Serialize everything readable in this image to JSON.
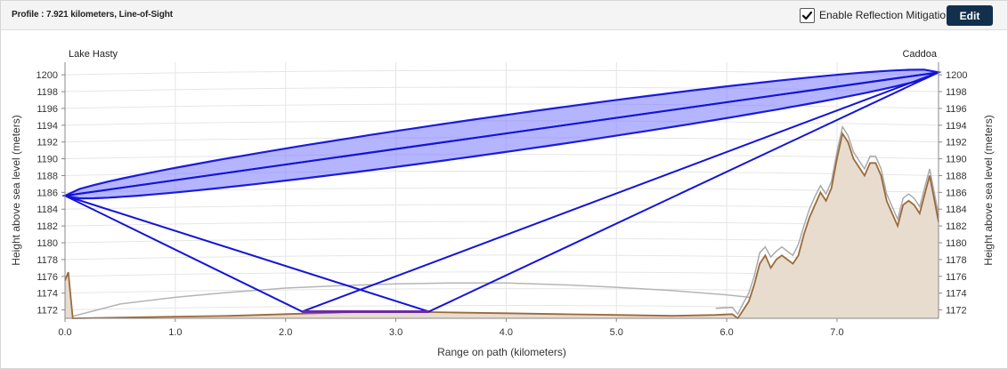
{
  "toolbar": {
    "title": "Profile : 7.921 kilometers, Line-of-Sight",
    "reflection_label": "Enable Reflection Mitigation",
    "reflection_checked": true,
    "edit_label": "Edit"
  },
  "chart_data": {
    "type": "area",
    "xlabel": "Range on path (kilometers)",
    "ylabel": "Height above sea level (meters)",
    "xlim": [
      0,
      7.921
    ],
    "ylim": [
      1171,
      1201.5
    ],
    "x_ticks": [
      "0.0",
      "1.0",
      "2.0",
      "3.0",
      "4.0",
      "5.0",
      "6.0",
      "7.0"
    ],
    "y_ticks": [
      "1172",
      "1174",
      "1176",
      "1178",
      "1180",
      "1182",
      "1184",
      "1186",
      "1188",
      "1190",
      "1192",
      "1194",
      "1196",
      "1198",
      "1200"
    ],
    "grid": true,
    "endpoints": {
      "start": {
        "name": "Lake Hasty",
        "x": 0,
        "height": 1185.6
      },
      "end": {
        "name": "Caddoa",
        "x": 7.921,
        "height": 1200.3
      }
    },
    "fresnel_zone": {
      "max_half_width": 2.2
    },
    "reflection_points": [
      2.15,
      3.3
    ],
    "reflection_height": 1171.8,
    "series": [
      {
        "name": "terrain",
        "color": "#9b6a3a",
        "points": [
          [
            0,
            1175.5
          ],
          [
            0.03,
            1176.5
          ],
          [
            0.07,
            1171
          ],
          [
            0.5,
            1171.1
          ],
          [
            1,
            1171.2
          ],
          [
            1.5,
            1171.3
          ],
          [
            2,
            1171.5
          ],
          [
            2.5,
            1171.7
          ],
          [
            3,
            1171.8
          ],
          [
            3.5,
            1171.7
          ],
          [
            4,
            1171.6
          ],
          [
            4.5,
            1171.5
          ],
          [
            5,
            1171.4
          ],
          [
            5.5,
            1171.3
          ],
          [
            5.9,
            1171.4
          ],
          [
            6.05,
            1171.5
          ],
          [
            6.1,
            1171
          ],
          [
            6.15,
            1172
          ],
          [
            6.2,
            1173
          ],
          [
            6.25,
            1175
          ],
          [
            6.3,
            1177.5
          ],
          [
            6.35,
            1178.5
          ],
          [
            6.4,
            1177
          ],
          [
            6.45,
            1178
          ],
          [
            6.5,
            1178.5
          ],
          [
            6.55,
            1178
          ],
          [
            6.6,
            1177.5
          ],
          [
            6.65,
            1178.5
          ],
          [
            6.7,
            1181
          ],
          [
            6.75,
            1183
          ],
          [
            6.8,
            1184.5
          ],
          [
            6.85,
            1186
          ],
          [
            6.9,
            1185
          ],
          [
            6.95,
            1186.5
          ],
          [
            7.0,
            1190
          ],
          [
            7.05,
            1193
          ],
          [
            7.1,
            1192
          ],
          [
            7.15,
            1190
          ],
          [
            7.2,
            1189
          ],
          [
            7.25,
            1188
          ],
          [
            7.3,
            1189.5
          ],
          [
            7.35,
            1189.5
          ],
          [
            7.4,
            1188
          ],
          [
            7.45,
            1185
          ],
          [
            7.5,
            1183.5
          ],
          [
            7.55,
            1182
          ],
          [
            7.6,
            1184.5
          ],
          [
            7.65,
            1185
          ],
          [
            7.7,
            1184.5
          ],
          [
            7.75,
            1183.5
          ],
          [
            7.8,
            1186
          ],
          [
            7.84,
            1188
          ],
          [
            7.87,
            1186
          ],
          [
            7.921,
            1182.5
          ]
        ]
      },
      {
        "name": "terrain-clutter",
        "color": "#aaaaaa",
        "points": [
          [
            5.9,
            1172.2
          ],
          [
            6.05,
            1172.3
          ],
          [
            6.1,
            1171.5
          ],
          [
            6.15,
            1172.8
          ],
          [
            6.2,
            1174
          ],
          [
            6.25,
            1176
          ],
          [
            6.3,
            1178.8
          ],
          [
            6.35,
            1179.5
          ],
          [
            6.4,
            1178.3
          ],
          [
            6.45,
            1179
          ],
          [
            6.5,
            1179.5
          ],
          [
            6.55,
            1179
          ],
          [
            6.6,
            1178.5
          ],
          [
            6.65,
            1179.8
          ],
          [
            6.7,
            1182
          ],
          [
            6.75,
            1184
          ],
          [
            6.8,
            1185.5
          ],
          [
            6.85,
            1186.8
          ],
          [
            6.9,
            1185.8
          ],
          [
            6.95,
            1187.3
          ],
          [
            7.0,
            1190.8
          ],
          [
            7.05,
            1193.8
          ],
          [
            7.1,
            1192.8
          ],
          [
            7.15,
            1190.8
          ],
          [
            7.2,
            1189.8
          ],
          [
            7.25,
            1188.8
          ],
          [
            7.3,
            1190.3
          ],
          [
            7.35,
            1190.3
          ],
          [
            7.4,
            1188.8
          ],
          [
            7.45,
            1185.8
          ],
          [
            7.5,
            1184.3
          ],
          [
            7.55,
            1182.8
          ],
          [
            7.6,
            1185.3
          ],
          [
            7.65,
            1185.8
          ],
          [
            7.7,
            1185.3
          ],
          [
            7.75,
            1184.3
          ],
          [
            7.8,
            1186.8
          ],
          [
            7.84,
            1188.8
          ],
          [
            7.87,
            1186.8
          ],
          [
            7.921,
            1183.3
          ]
        ]
      },
      {
        "name": "earth-curvature",
        "color": "#b5b5b5",
        "points": [
          [
            0,
            1171
          ],
          [
            0.5,
            1172.7
          ],
          [
            1,
            1173.5
          ],
          [
            1.5,
            1174.1
          ],
          [
            2,
            1174.6
          ],
          [
            2.5,
            1174.9
          ],
          [
            3,
            1175.1
          ],
          [
            3.5,
            1175.2
          ],
          [
            4,
            1175.2
          ],
          [
            4.5,
            1175.0
          ],
          [
            5,
            1174.7
          ],
          [
            5.5,
            1174.3
          ],
          [
            6,
            1173.8
          ],
          [
            6.5,
            1173.1
          ],
          [
            7,
            1172.3
          ],
          [
            7.5,
            1171.5
          ],
          [
            7.921,
            1171
          ]
        ]
      }
    ]
  }
}
